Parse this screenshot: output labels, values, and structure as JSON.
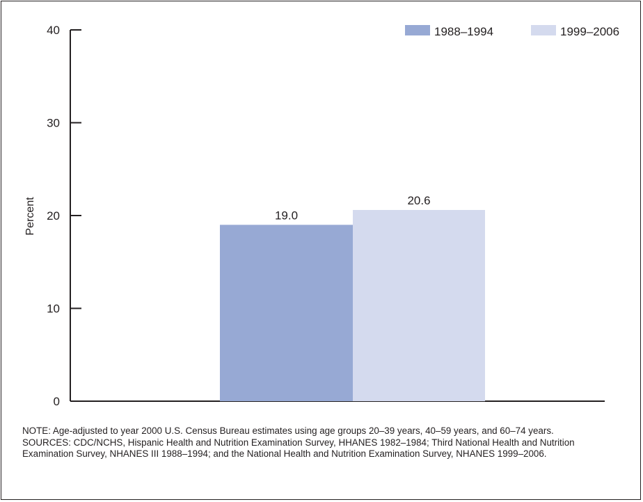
{
  "chart_data": {
    "type": "bar",
    "ylabel": "Percent",
    "ylim": [
      0,
      40
    ],
    "yticks": [
      0,
      10,
      20,
      30,
      40
    ],
    "legend_position": "top-right",
    "series": [
      {
        "name": "1988–1994",
        "values": [
          19.0
        ],
        "labels": [
          "19.0"
        ],
        "color": "#97a9d4"
      },
      {
        "name": "1999–2006",
        "values": [
          20.6
        ],
        "labels": [
          "20.6"
        ],
        "color": "#d4daee"
      }
    ],
    "grid": false
  },
  "notes": {
    "note": "NOTE: Age-adjusted to year 2000 U.S. Census Bureau estimates using age groups 20–39 years, 40–59 years, and 60–74 years.",
    "sources": "SOURCES: CDC/NCHS, Hispanic Health and Nutrition Examination Survey, HHANES 1982–1984; Third National Health and Nutrition Examination Survey, NHANES III 1988–1994; and the National Health and Nutrition Examination Survey, NHANES 1999–2006."
  }
}
